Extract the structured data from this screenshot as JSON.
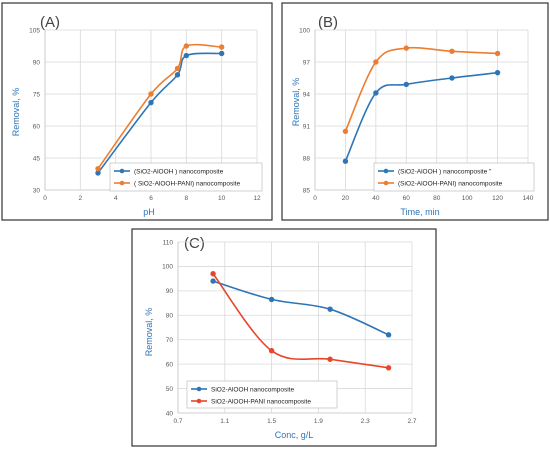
{
  "colors": {
    "blue": "#2e75b6",
    "orange": "#ed7d31",
    "red": "#e8452b"
  },
  "chart_data": [
    {
      "panel": "(A)",
      "type": "line",
      "xlabel": "pH",
      "ylabel": "Removal, %",
      "xlim": [
        0,
        12
      ],
      "ylim": [
        30,
        105
      ],
      "xticks": [
        0,
        2,
        4,
        6,
        8,
        10,
        12
      ],
      "yticks": [
        30,
        45,
        60,
        75,
        90,
        105
      ],
      "grid": true,
      "legend_position": "bottom-right",
      "series": [
        {
          "name": "(SiO2-AlOOH ) nanocomposite",
          "color": "#2e75b6",
          "x": [
            3,
            6,
            7.5,
            8,
            10
          ],
          "y": [
            38,
            71,
            84,
            93,
            94
          ]
        },
        {
          "name": "( SiO2-AlOOH-PANI) nanocomposite",
          "color": "#ed7d31",
          "x": [
            3,
            6,
            7.5,
            8,
            10
          ],
          "y": [
            40,
            75,
            87,
            97.5,
            97
          ]
        }
      ]
    },
    {
      "panel": "(B)",
      "type": "line",
      "xlabel": "Time, min",
      "ylabel": "Removal, %",
      "xlim": [
        0,
        140
      ],
      "ylim": [
        85,
        100
      ],
      "xticks": [
        0,
        20,
        40,
        60,
        80,
        100,
        120,
        140
      ],
      "yticks": [
        85,
        88,
        91,
        94,
        97,
        100
      ],
      "grid": true,
      "legend_position": "bottom-right",
      "series": [
        {
          "name": "(SiO2-AlOOH )  nanocomposite \"",
          "color": "#2e75b6",
          "x": [
            20,
            40,
            60,
            90,
            120
          ],
          "y": [
            87.7,
            94.1,
            94.9,
            95.5,
            96
          ]
        },
        {
          "name": "(SiO2-AlOOH-PANI) nanocomposite",
          "color": "#ed7d31",
          "x": [
            20,
            40,
            60,
            90,
            120
          ],
          "y": [
            90.5,
            97,
            98.3,
            98,
            97.8
          ]
        }
      ]
    },
    {
      "panel": "(C)",
      "type": "line",
      "xlabel": "Conc, g/L",
      "ylabel": "Removal, %",
      "xlim": [
        0.7,
        2.7
      ],
      "ylim": [
        40,
        110
      ],
      "xticks": [
        "0.7",
        "1.1",
        "1.5",
        "1.9",
        "2.3",
        "2.7"
      ],
      "yticks": [
        40,
        50,
        60,
        70,
        80,
        90,
        100,
        110
      ],
      "grid": true,
      "legend_position": "bottom-left",
      "series": [
        {
          "name": "SiO2-AlOOH nanocomposite",
          "color": "#2e75b6",
          "x": [
            1,
            1.5,
            2,
            2.5
          ],
          "y": [
            94,
            86.5,
            82.5,
            72
          ]
        },
        {
          "name": "SiO2-AlOOH-PANI nanocomposite",
          "color": "#e8452b",
          "x": [
            1,
            1.5,
            2,
            2.5
          ],
          "y": [
            97,
            65.5,
            62,
            58.5
          ]
        }
      ]
    }
  ]
}
